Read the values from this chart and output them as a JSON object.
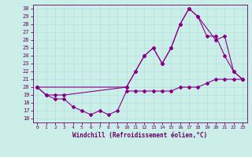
{
  "xlabel": "Windchill (Refroidissement éolien,°C)",
  "bg_color": "#cceee8",
  "line_color": "#880088",
  "xlim": [
    -0.5,
    23.5
  ],
  "ylim": [
    15.5,
    30.5
  ],
  "yticks": [
    16,
    17,
    18,
    19,
    20,
    21,
    22,
    23,
    24,
    25,
    26,
    27,
    28,
    29,
    30
  ],
  "xticks": [
    0,
    1,
    2,
    3,
    4,
    5,
    6,
    7,
    8,
    9,
    10,
    11,
    12,
    13,
    14,
    15,
    16,
    17,
    18,
    19,
    20,
    21,
    22,
    23
  ],
  "line1_x": [
    0,
    1,
    2,
    3,
    4,
    5,
    6,
    7,
    8,
    9,
    10,
    11,
    12,
    13,
    14,
    15,
    16,
    17,
    18,
    19,
    20,
    21,
    22,
    23
  ],
  "line1_y": [
    20,
    19,
    18.5,
    18.5,
    17.5,
    17,
    16.5,
    17,
    16.5,
    17,
    19.5,
    19.5,
    19.5,
    19.5,
    19.5,
    19.5,
    20,
    20,
    20,
    20.5,
    21,
    21,
    21,
    21
  ],
  "line2_x": [
    0,
    1,
    2,
    3,
    10,
    11,
    12,
    13,
    14,
    15,
    16,
    17,
    18,
    20,
    21,
    22,
    23
  ],
  "line2_y": [
    20,
    19,
    19,
    19,
    20,
    22,
    24,
    25,
    23,
    25,
    28,
    30,
    29,
    26,
    26.5,
    22,
    21
  ],
  "line3_x": [
    0,
    10,
    11,
    12,
    13,
    14,
    15,
    16,
    17,
    18,
    19,
    20,
    21,
    22,
    23
  ],
  "line3_y": [
    20,
    20,
    22,
    24,
    25,
    23,
    25,
    28,
    30,
    29,
    26.5,
    26.5,
    24,
    22,
    21
  ]
}
